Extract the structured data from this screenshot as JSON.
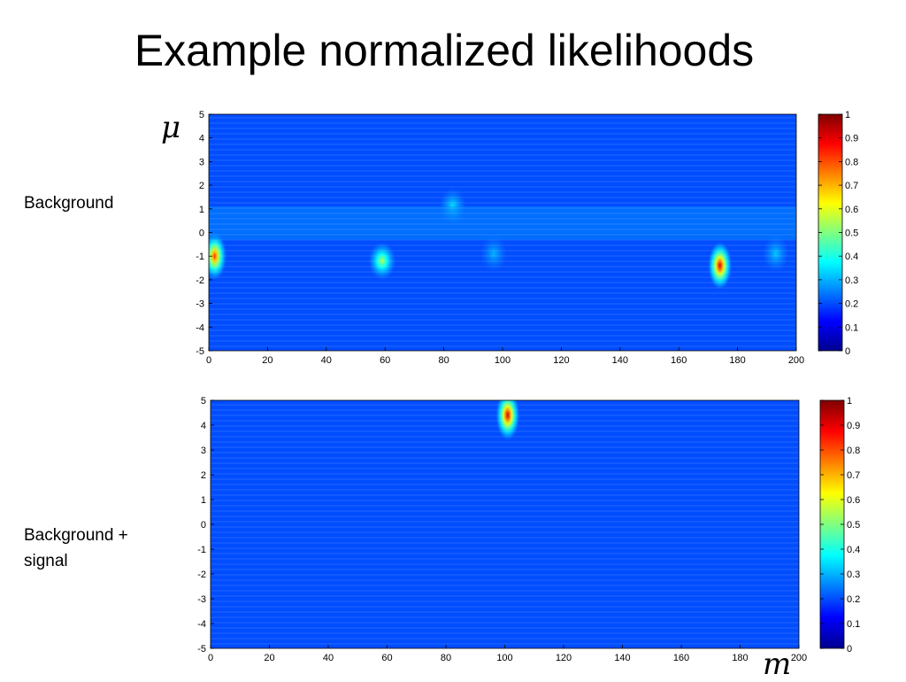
{
  "slide": {
    "title": "Example normalized likelihoods",
    "y_symbol": "μ",
    "x_symbol": "m",
    "row_labels": [
      "Background",
      "Background +\nsignal"
    ]
  },
  "chart_data": [
    {
      "type": "heatmap",
      "title": "",
      "xlabel": "m",
      "ylabel": "μ",
      "row_label": "Background",
      "xlim": [
        0,
        200
      ],
      "ylim": [
        -5,
        5
      ],
      "x_ticks": [
        0,
        20,
        40,
        60,
        80,
        100,
        120,
        140,
        160,
        180,
        200
      ],
      "y_ticks": [
        5,
        4,
        3,
        2,
        1,
        0,
        -1,
        -2,
        -3,
        -4,
        -5
      ],
      "colorbar": {
        "range": [
          0,
          1
        ],
        "ticks": [
          1,
          0.9,
          0.8,
          0.7,
          0.6,
          0.5,
          0.4,
          0.3,
          0.2,
          0.1,
          0
        ],
        "colormap": "jet"
      },
      "background_level": 0.2,
      "peaks": [
        {
          "m": 2,
          "mu": -1.0,
          "value": 0.85
        },
        {
          "m": 59,
          "mu": -1.2,
          "value": 0.55
        },
        {
          "m": 83,
          "mu": 1.1,
          "value": 0.35
        },
        {
          "m": 97,
          "mu": -0.9,
          "value": 0.3
        },
        {
          "m": 174,
          "mu": -1.4,
          "value": 0.95
        },
        {
          "m": 193,
          "mu": -0.9,
          "value": 0.32
        }
      ]
    },
    {
      "type": "heatmap",
      "title": "",
      "xlabel": "m",
      "ylabel": "μ",
      "row_label": "Background + signal",
      "xlim": [
        0,
        200
      ],
      "ylim": [
        -5,
        5
      ],
      "x_ticks": [
        0,
        20,
        40,
        60,
        80,
        100,
        120,
        140,
        160,
        180,
        200
      ],
      "y_ticks": [
        5,
        4,
        3,
        2,
        1,
        0,
        -1,
        -2,
        -3,
        -4,
        -5
      ],
      "colorbar": {
        "range": [
          0,
          1
        ],
        "ticks": [
          1,
          0.9,
          0.8,
          0.7,
          0.6,
          0.5,
          0.4,
          0.3,
          0.2,
          0.1,
          0
        ],
        "colormap": "jet"
      },
      "background_level": 0.2,
      "peaks": [
        {
          "m": 101,
          "mu": 4.4,
          "value": 0.95
        }
      ]
    }
  ]
}
